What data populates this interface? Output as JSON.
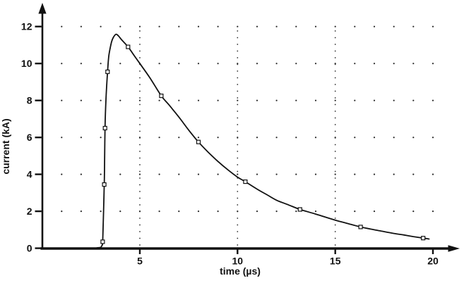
{
  "figure": {
    "background": "#ffffff",
    "ink_color": "#111111",
    "grid_dot_color": "#2b2b2b"
  },
  "chart_data": {
    "type": "line",
    "title": "",
    "xlabel": "time (µs)",
    "ylabel": "current (kA)",
    "xlim": [
      0,
      21.5
    ],
    "ylim": [
      0,
      13.2
    ],
    "x_ticks": [
      5,
      10,
      15,
      20
    ],
    "y_ticks": [
      0,
      2,
      4,
      6,
      8,
      10,
      12
    ],
    "grid": {
      "style": "sparse dots at intersections; dense dotted vertical lines",
      "dot_rows_kA": [
        2,
        4,
        6,
        8,
        10,
        12
      ],
      "dot_cols_us": [
        1,
        2,
        3,
        4,
        5,
        6,
        7,
        8,
        9,
        10,
        11,
        12,
        13,
        14,
        15,
        16,
        17,
        18,
        19,
        20
      ],
      "dotted_vlines_us": [
        5,
        10,
        15
      ]
    },
    "legend": "none",
    "peak": {
      "t_us": 3.75,
      "i_kA": 11.6
    },
    "series": [
      {
        "name": "impulse-current-waveform",
        "marker": "open-square",
        "points": [
          [
            3.1,
            0.35
          ],
          [
            3.18,
            3.45
          ],
          [
            3.22,
            6.5
          ],
          [
            3.35,
            9.55
          ],
          [
            4.4,
            10.9
          ],
          [
            6.1,
            8.25
          ],
          [
            8.0,
            5.75
          ],
          [
            10.4,
            3.6
          ],
          [
            13.2,
            2.1
          ],
          [
            16.3,
            1.15
          ],
          [
            19.5,
            0.55
          ]
        ],
        "curve": [
          [
            2.8,
            0.02
          ],
          [
            3.0,
            0.05
          ],
          [
            3.06,
            0.15
          ],
          [
            3.1,
            0.35
          ],
          [
            3.14,
            1.8
          ],
          [
            3.18,
            3.45
          ],
          [
            3.2,
            4.7
          ],
          [
            3.22,
            6.5
          ],
          [
            3.27,
            8.1
          ],
          [
            3.35,
            9.55
          ],
          [
            3.42,
            10.45
          ],
          [
            3.55,
            11.15
          ],
          [
            3.65,
            11.42
          ],
          [
            3.78,
            11.58
          ],
          [
            3.9,
            11.5
          ],
          [
            4.1,
            11.25
          ],
          [
            4.4,
            10.9
          ],
          [
            4.7,
            10.45
          ],
          [
            5.0,
            10.0
          ],
          [
            5.5,
            9.25
          ],
          [
            6.1,
            8.25
          ],
          [
            6.5,
            7.75
          ],
          [
            7.0,
            7.1
          ],
          [
            7.5,
            6.4
          ],
          [
            8.0,
            5.75
          ],
          [
            8.5,
            5.2
          ],
          [
            9.0,
            4.7
          ],
          [
            9.5,
            4.25
          ],
          [
            10.0,
            3.85
          ],
          [
            10.4,
            3.6
          ],
          [
            11.0,
            3.2
          ],
          [
            11.5,
            2.9
          ],
          [
            12.0,
            2.6
          ],
          [
            12.6,
            2.35
          ],
          [
            13.2,
            2.1
          ],
          [
            14.0,
            1.85
          ],
          [
            15.0,
            1.52
          ],
          [
            15.6,
            1.35
          ],
          [
            16.3,
            1.15
          ],
          [
            17.0,
            1.0
          ],
          [
            17.5,
            0.9
          ],
          [
            18.0,
            0.8
          ],
          [
            18.5,
            0.72
          ],
          [
            19.0,
            0.63
          ],
          [
            19.5,
            0.55
          ],
          [
            19.8,
            0.5
          ]
        ]
      }
    ]
  }
}
